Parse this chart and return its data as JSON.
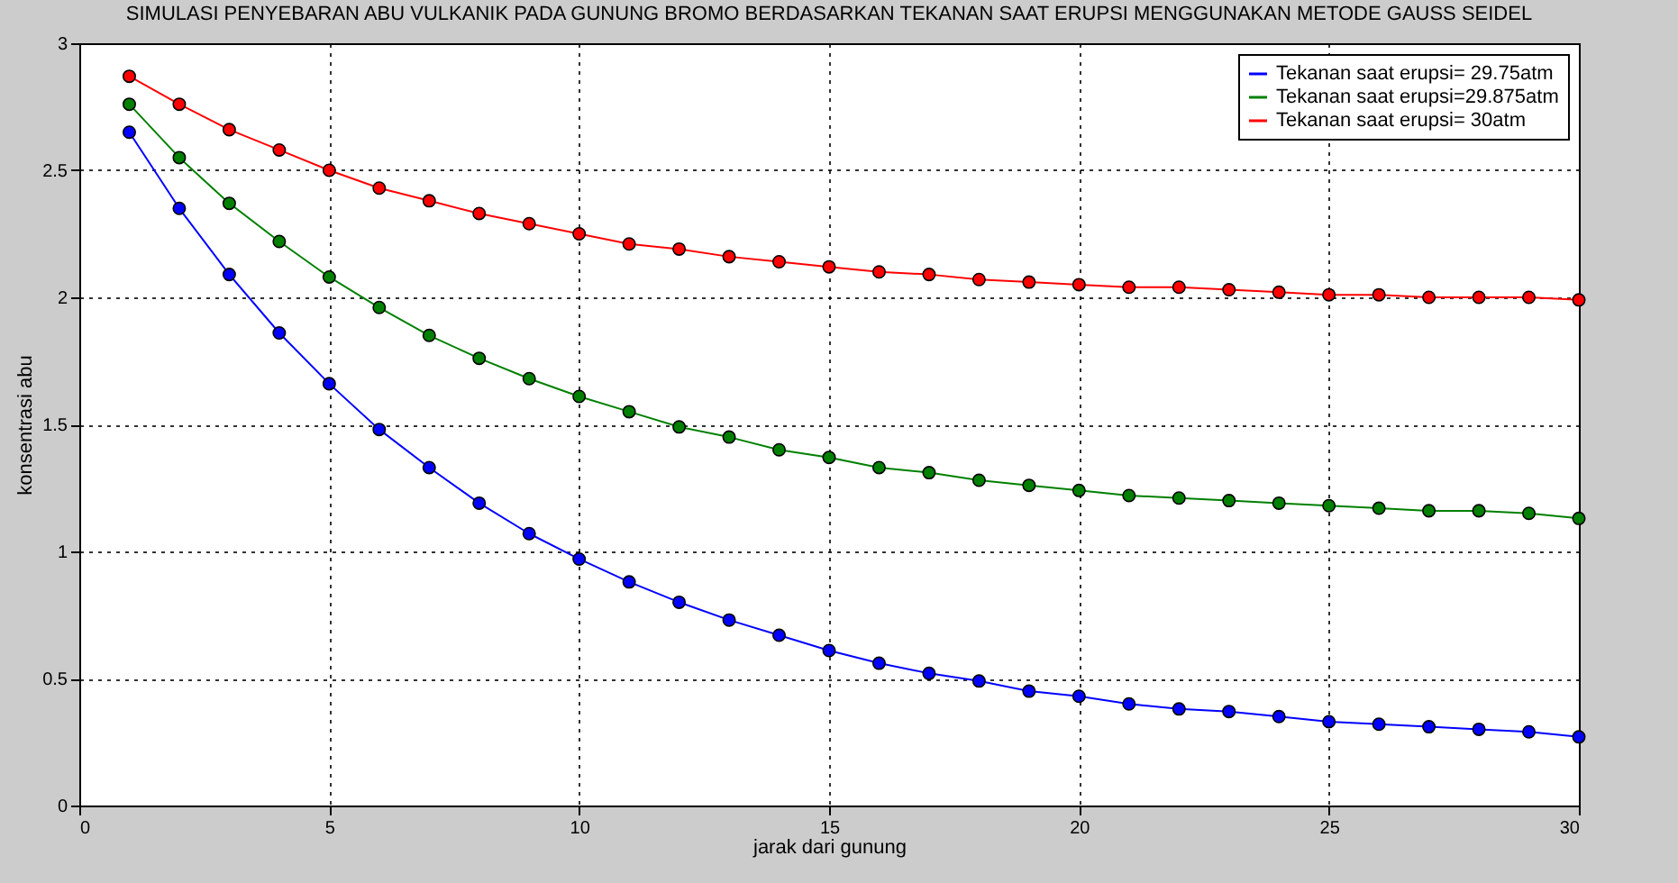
{
  "chart_data": {
    "type": "line",
    "title": "SIMULASI  PENYEBARAN ABU VULKANIK PADA GUNUNG BROMO BERDASARKAN TEKANAN SAAT ERUPSI MENGGUNAKAN METODE GAUSS SEIDEL",
    "xlabel": "jarak dari gunung",
    "ylabel": "konsentrasi abu",
    "x": [
      1,
      2,
      3,
      4,
      5,
      6,
      7,
      8,
      9,
      10,
      11,
      12,
      13,
      14,
      15,
      16,
      17,
      18,
      19,
      20,
      21,
      22,
      23,
      24,
      25,
      26,
      27,
      28,
      29,
      30
    ],
    "series": [
      {
        "name": "Tekanan saat erupsi= 29.75atm",
        "color": "#0000ff",
        "values": [
          2.65,
          2.35,
          2.09,
          1.86,
          1.66,
          1.48,
          1.33,
          1.19,
          1.07,
          0.97,
          0.88,
          0.8,
          0.73,
          0.67,
          0.61,
          0.56,
          0.52,
          0.49,
          0.45,
          0.43,
          0.4,
          0.38,
          0.37,
          0.35,
          0.33,
          0.32,
          0.31,
          0.3,
          0.29,
          0.27
        ]
      },
      {
        "name": "Tekanan saat erupsi=29.875atm",
        "color": "#008000",
        "values": [
          2.76,
          2.55,
          2.37,
          2.22,
          2.08,
          1.96,
          1.85,
          1.76,
          1.68,
          1.61,
          1.55,
          1.49,
          1.45,
          1.4,
          1.37,
          1.33,
          1.31,
          1.28,
          1.26,
          1.24,
          1.22,
          1.21,
          1.2,
          1.19,
          1.18,
          1.17,
          1.16,
          1.16,
          1.15,
          1.13
        ]
      },
      {
        "name": "Tekanan saat erupsi=    30atm",
        "color": "#ff0000",
        "values": [
          2.87,
          2.76,
          2.66,
          2.58,
          2.5,
          2.43,
          2.38,
          2.33,
          2.29,
          2.25,
          2.21,
          2.19,
          2.16,
          2.14,
          2.12,
          2.1,
          2.09,
          2.07,
          2.06,
          2.05,
          2.04,
          2.04,
          2.03,
          2.02,
          2.01,
          2.01,
          2.0,
          2.0,
          2.0,
          1.99
        ]
      }
    ],
    "xlim": [
      0,
      30
    ],
    "xticks": [
      0,
      5,
      10,
      15,
      20,
      25,
      30
    ],
    "ylim": [
      0,
      3
    ],
    "yticks": [
      0,
      0.5,
      1,
      1.5,
      2,
      2.5,
      3
    ],
    "grid": true,
    "legend": "top right",
    "marker": "circle",
    "line_style": "solid"
  }
}
